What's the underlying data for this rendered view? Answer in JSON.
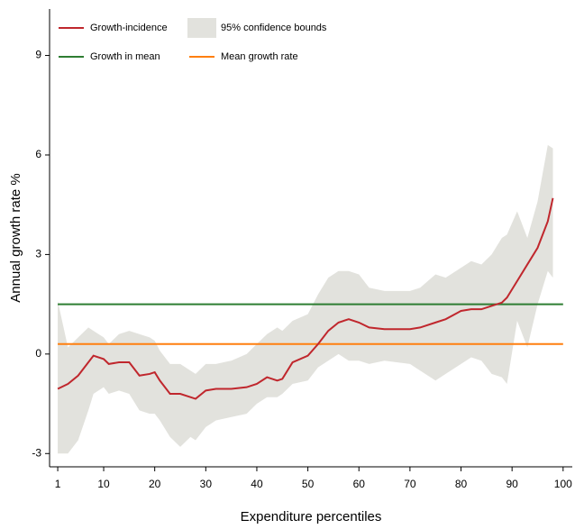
{
  "chart_data": {
    "type": "line",
    "xlabel": "Expenditure percentiles",
    "ylabel": "Annual growth rate %",
    "xlim": [
      -0.6,
      101.8
    ],
    "ylim": [
      -3.4,
      10.4
    ],
    "xticks": [
      1,
      10,
      20,
      30,
      40,
      50,
      60,
      70,
      80,
      90,
      100
    ],
    "yticks": [
      -3,
      0,
      3,
      6,
      9
    ],
    "x": [
      1,
      3,
      5,
      7,
      8,
      10,
      11,
      13,
      15,
      17,
      19,
      20,
      21,
      23,
      25,
      27,
      28,
      30,
      32,
      35,
      38,
      40,
      42,
      44,
      45,
      47,
      50,
      52,
      54,
      56,
      58,
      60,
      62,
      65,
      70,
      72,
      75,
      77,
      80,
      82,
      84,
      86,
      88,
      89,
      91,
      93,
      95,
      97,
      98
    ],
    "series": [
      {
        "name": "Growth-incidence",
        "color": "#c0272d",
        "values": [
          -1.05,
          -0.9,
          -0.65,
          -0.25,
          -0.05,
          -0.15,
          -0.3,
          -0.25,
          -0.25,
          -0.65,
          -0.6,
          -0.55,
          -0.8,
          -1.2,
          -1.2,
          -1.3,
          -1.35,
          -1.1,
          -1.05,
          -1.05,
          -1.0,
          -0.9,
          -0.7,
          -0.8,
          -0.75,
          -0.25,
          -0.05,
          0.3,
          0.7,
          0.95,
          1.05,
          0.95,
          0.8,
          0.75,
          0.75,
          0.8,
          0.95,
          1.05,
          1.3,
          1.35,
          1.35,
          1.45,
          1.55,
          1.7,
          2.2,
          2.7,
          3.2,
          4.0,
          4.7
        ]
      }
    ],
    "band": {
      "name": "95% confidence bounds",
      "color": "#e2e2dd",
      "upper": [
        1.6,
        0.2,
        0.5,
        0.8,
        0.7,
        0.5,
        0.3,
        0.6,
        0.7,
        0.6,
        0.5,
        0.4,
        0.1,
        -0.3,
        -0.3,
        -0.5,
        -0.6,
        -0.3,
        -0.3,
        -0.2,
        0.0,
        0.3,
        0.6,
        0.8,
        0.7,
        1.0,
        1.2,
        1.8,
        2.3,
        2.5,
        2.5,
        2.4,
        2.0,
        1.9,
        1.9,
        2.0,
        2.4,
        2.3,
        2.6,
        2.8,
        2.7,
        3.0,
        3.5,
        3.6,
        4.3,
        3.5,
        4.6,
        6.3,
        6.2
      ],
      "lower": [
        -3.0,
        -3.0,
        -2.6,
        -1.7,
        -1.2,
        -1.0,
        -1.2,
        -1.1,
        -1.2,
        -1.7,
        -1.8,
        -1.8,
        -2.0,
        -2.5,
        -2.8,
        -2.5,
        -2.6,
        -2.2,
        -2.0,
        -1.9,
        -1.8,
        -1.5,
        -1.3,
        -1.3,
        -1.2,
        -0.9,
        -0.8,
        -0.4,
        -0.2,
        0.0,
        -0.2,
        -0.2,
        -0.3,
        -0.2,
        -0.3,
        -0.5,
        -0.8,
        -0.6,
        -0.3,
        -0.1,
        -0.2,
        -0.6,
        -0.7,
        -0.9,
        1.0,
        0.2,
        1.5,
        2.5,
        2.3
      ]
    },
    "reference_lines": [
      {
        "name": "Growth in mean",
        "color": "#2e7d32",
        "value": 1.5
      },
      {
        "name": "Mean growth rate",
        "color": "#ff7f0e",
        "value": 0.3
      }
    ]
  }
}
